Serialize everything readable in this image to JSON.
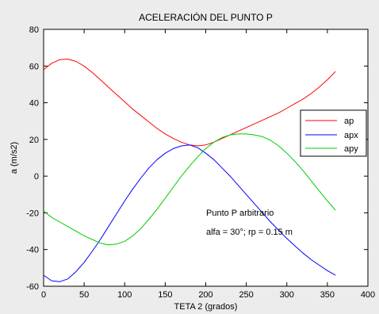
{
  "chart_data": {
    "type": "line",
    "title": "ACELERACIÓN DEL PUNTO P",
    "xlabel": "TETA 2 (grados)",
    "ylabel": "a (m/s2)",
    "xlim": [
      0,
      400
    ],
    "ylim": [
      -60,
      80
    ],
    "xticks": [
      0,
      50,
      100,
      150,
      200,
      250,
      300,
      350,
      400
    ],
    "yticks": [
      -60,
      -40,
      -20,
      0,
      20,
      40,
      60,
      80
    ],
    "grid": false,
    "legend_position": "right",
    "x": [
      0,
      10,
      20,
      30,
      40,
      50,
      60,
      70,
      80,
      90,
      100,
      110,
      120,
      130,
      140,
      150,
      160,
      170,
      180,
      190,
      200,
      210,
      220,
      230,
      240,
      250,
      260,
      270,
      280,
      290,
      300,
      310,
      320,
      330,
      340,
      350,
      360
    ],
    "series": [
      {
        "name": "ap",
        "color": "#ff0000",
        "values": [
          58,
          61.5,
          63.5,
          63.8,
          62.5,
          60,
          56.5,
          52.5,
          48.5,
          44.5,
          40.5,
          36.5,
          33,
          29.5,
          26,
          23,
          20.5,
          18.5,
          17,
          16.5,
          17,
          18.5,
          20.5,
          22.5,
          24.5,
          26.5,
          28.5,
          30.5,
          32.5,
          34.5,
          37,
          39.5,
          42,
          45,
          48.5,
          52.5,
          57
        ]
      },
      {
        "name": "apx",
        "color": "#0000ff",
        "values": [
          -54,
          -57,
          -57.5,
          -56,
          -52,
          -47,
          -41,
          -34.5,
          -27.5,
          -20.5,
          -13.5,
          -7,
          -1,
          4.5,
          9,
          12.5,
          15,
          16.5,
          17,
          15.5,
          12.5,
          9,
          4.5,
          0,
          -5,
          -10,
          -15,
          -20,
          -25,
          -29.5,
          -34,
          -38,
          -42,
          -45.5,
          -48.5,
          -51.5,
          -54
        ]
      },
      {
        "name": "apy",
        "color": "#00cc00",
        "values": [
          -19,
          -22.5,
          -25,
          -27.5,
          -30,
          -32.5,
          -34.5,
          -36.5,
          -37.5,
          -37,
          -35.5,
          -32.5,
          -28.5,
          -23.5,
          -18,
          -12,
          -6,
          0,
          5.5,
          10.5,
          15,
          18.5,
          21,
          22.5,
          23,
          23,
          22.5,
          21.5,
          19.5,
          16.5,
          12.5,
          8,
          3,
          -2.5,
          -8,
          -13.5,
          -18.5
        ]
      }
    ],
    "annotations": [
      "Punto P arbitrario",
      "alfa = 30°; rp = 0.15 m"
    ]
  }
}
